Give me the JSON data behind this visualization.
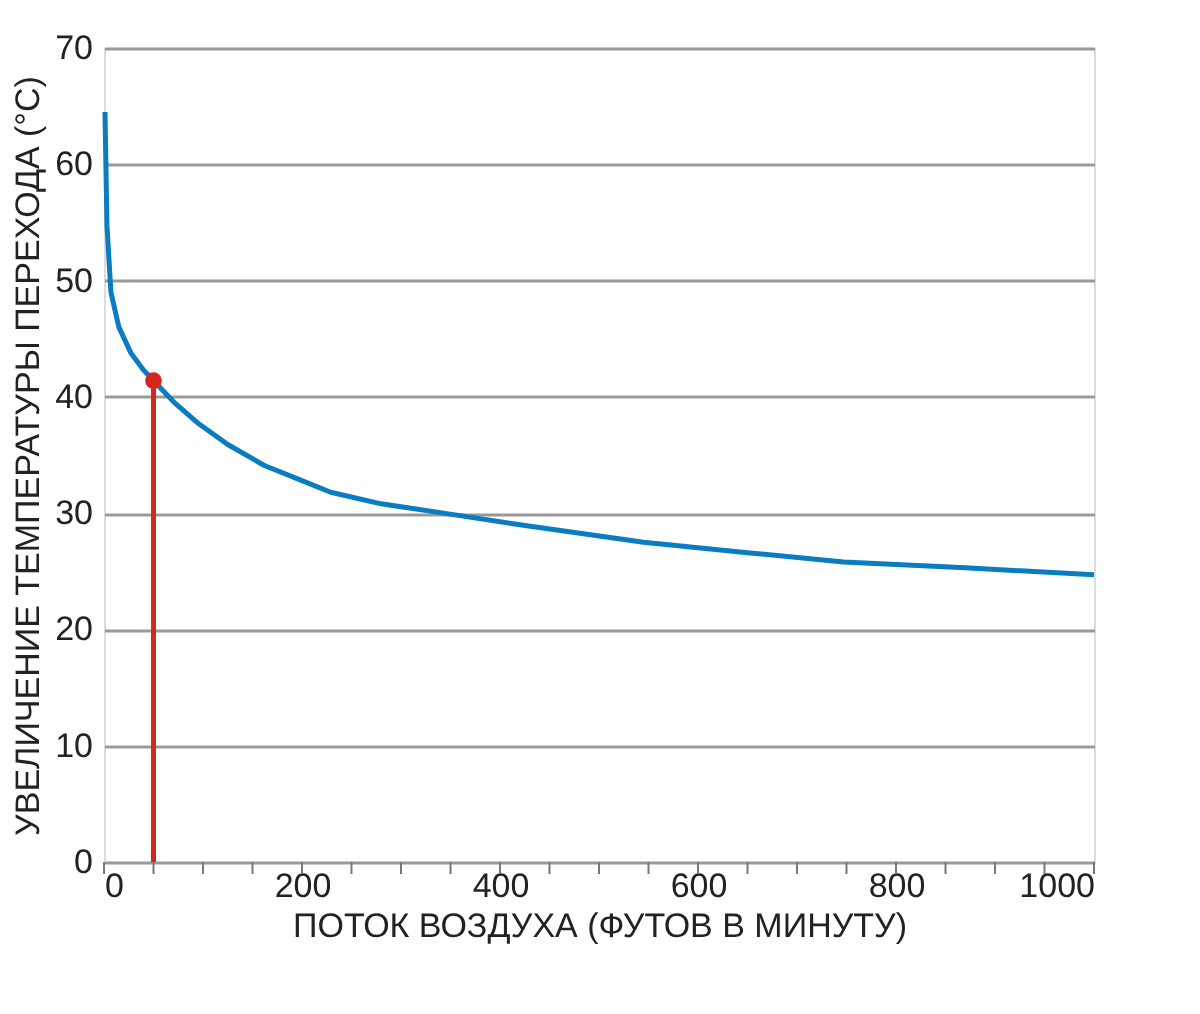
{
  "chart_data": {
    "type": "line",
    "xlabel": "ПОТОК ВОЗДУХА (ФУТОВ В МИНУТУ)",
    "ylabel": "УВЕЛИЧЕНИЕ ТЕМПЕРАТУРЫ ПЕРЕХОДА (°C)",
    "series": [
      {
        "color": "#0a7cc1",
        "x": [
          1,
          3,
          7,
          15,
          27,
          40,
          50,
          70,
          94,
          125,
          162,
          200,
          229,
          280,
          343,
          420,
          545,
          650,
          747,
          870,
          1000
        ],
        "values": [
          64.5,
          54.7,
          49,
          46,
          43.8,
          42.3,
          41.4,
          39.6,
          37.8,
          35.9,
          34.1,
          32.8,
          31.8,
          30.8,
          30,
          29,
          27.5,
          26.6,
          25.8,
          25.3,
          24.7
        ]
      },
      {
        "type": "line",
        "color": "#d7261e",
        "x": [
          50,
          50
        ],
        "values": [
          0,
          41.4
        ]
      },
      {
        "type": "scatter",
        "marker": "circle",
        "color": "#d7261e",
        "x": [
          50
        ],
        "values": [
          41.4
        ]
      }
    ],
    "xlim": [
      0,
      1000
    ],
    "ylim": [
      0,
      70
    ],
    "xticks": [
      0,
      {
        "value": 50,
        "label": null
      },
      {
        "value": 100,
        "label": null
      },
      {
        "value": 150,
        "label": null
      },
      200,
      {
        "value": 250,
        "label": null
      },
      {
        "value": 300,
        "label": null
      },
      {
        "value": 350,
        "label": null
      },
      400,
      {
        "value": 450,
        "label": null
      },
      {
        "value": 500,
        "label": null
      },
      {
        "value": 550,
        "label": null
      },
      600,
      {
        "value": 650,
        "label": null
      },
      {
        "value": 700,
        "label": null
      },
      {
        "value": 750,
        "label": null
      },
      800,
      {
        "value": 850,
        "label": null
      },
      {
        "value": 900,
        "label": null
      },
      {
        "value": 950,
        "label": null
      },
      1000
    ],
    "yticks": [
      0,
      10,
      20,
      30,
      40,
      50,
      60,
      70
    ],
    "grid": "y",
    "line_style": "solid",
    "marker": "none"
  }
}
